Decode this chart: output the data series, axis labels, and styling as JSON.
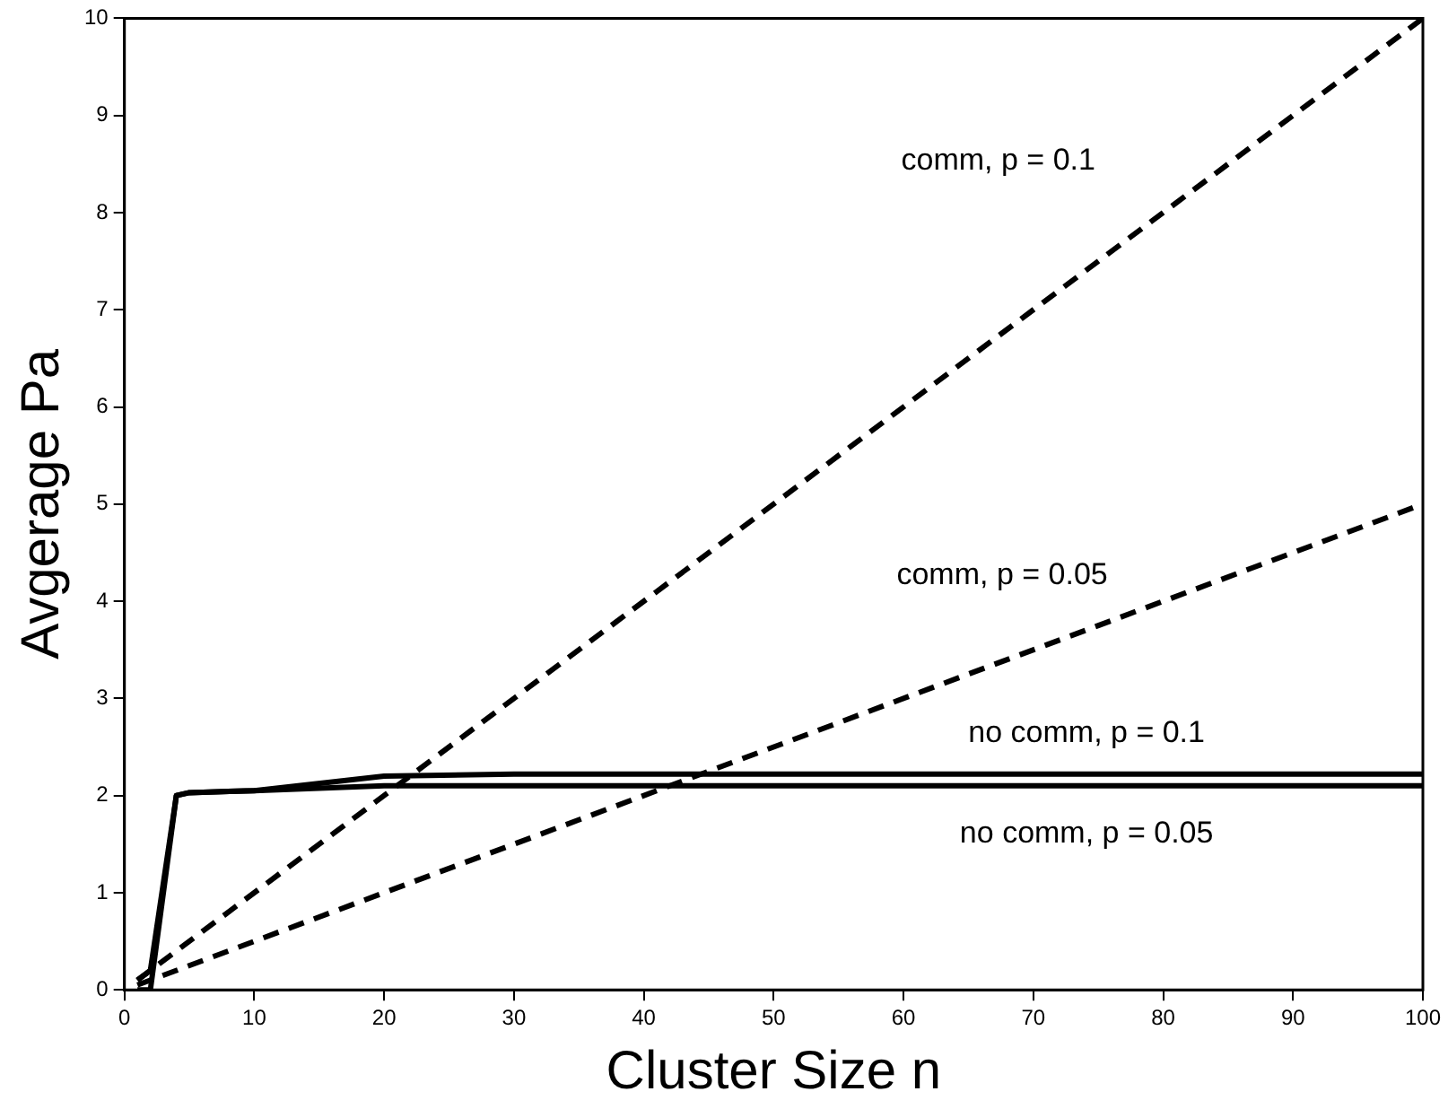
{
  "chart_data": {
    "type": "line",
    "xlabel": "Cluster Size n",
    "ylabel": "Avgerage Pa",
    "xlim": [
      0,
      100
    ],
    "xticks": [
      0,
      10,
      20,
      30,
      40,
      50,
      60,
      70,
      80,
      90,
      100
    ],
    "ylim": [
      0,
      10
    ],
    "yticks": [
      0,
      1,
      2,
      3,
      4,
      5,
      6,
      7,
      8,
      9,
      10
    ],
    "grid": false,
    "legend": false,
    "marker": "none",
    "series": [
      {
        "name": "comm, p = 0.1",
        "color": "#000000",
        "line_style": "dashed",
        "x": [
          1,
          100
        ],
        "values": [
          0.1,
          10
        ]
      },
      {
        "name": "comm, p = 0.05",
        "color": "#000000",
        "line_style": "dashed",
        "x": [
          1,
          100
        ],
        "values": [
          0.05,
          5
        ]
      },
      {
        "name": "no comm, p = 0.1",
        "color": "#000000",
        "line_style": "solid",
        "x": [
          1,
          2,
          4,
          5,
          10,
          20,
          30,
          100
        ],
        "values": [
          0.1,
          0.2,
          2.0,
          2.03,
          2.05,
          2.2,
          2.22,
          2.22
        ]
      },
      {
        "name": "no comm, p = 0.05",
        "color": "#000000",
        "line_style": "solid",
        "x": [
          1,
          2,
          4,
          5,
          10,
          20,
          100
        ],
        "values": [
          0,
          0,
          2.0,
          2.03,
          2.05,
          2.1,
          2.1
        ]
      }
    ]
  }
}
